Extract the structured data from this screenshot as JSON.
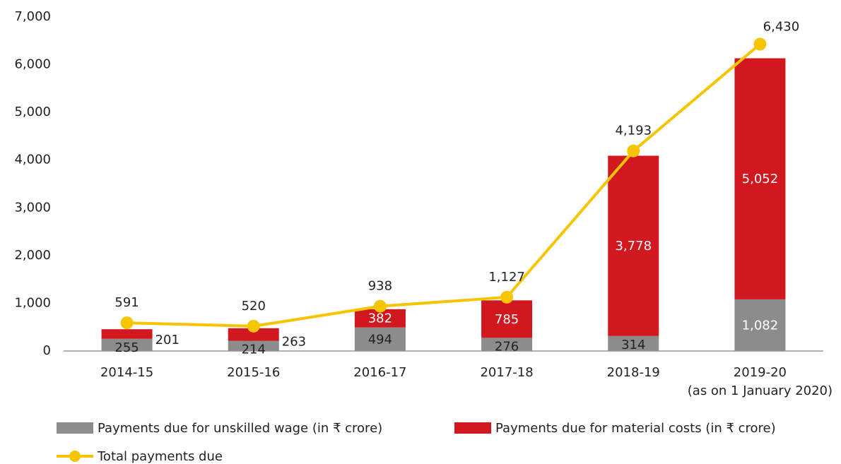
{
  "chart_data": {
    "type": "stacked-bar-line",
    "categories": [
      "2014-15",
      "2015-16",
      "2016-17",
      "2017-18",
      "2018-19",
      "2019-20\n(as on 1 January 2020)"
    ],
    "series": [
      {
        "name": "Payments due for unskilled wage (in ₹ crore)",
        "color": "#8c8c8c",
        "type": "bar",
        "values": [
          255,
          214,
          494,
          276,
          314,
          1082
        ],
        "value_labels": [
          "255",
          "214",
          "494",
          "276",
          "314",
          "1,082"
        ]
      },
      {
        "name": "Payments due for material costs (in ₹ crore)",
        "color": "#d0181e",
        "type": "bar",
        "values": [
          201,
          263,
          382,
          785,
          3778,
          5052
        ],
        "value_labels": [
          "201",
          "263",
          "382",
          "785",
          "3,778",
          "5,052"
        ]
      },
      {
        "name": "Total payments due",
        "color": "#f7c500",
        "type": "line",
        "values": [
          591,
          520,
          938,
          1127,
          4193,
          6430
        ],
        "value_labels": [
          "591",
          "520",
          "938",
          "1,127",
          "4,193",
          "6,430"
        ]
      }
    ],
    "ylim": [
      0,
      7000
    ],
    "yticks": [
      0,
      {
        "value": 1000,
        "label": "1,000"
      },
      {
        "value": 2000,
        "label": "2,000"
      },
      {
        "value": 3000,
        "label": "3,000"
      },
      {
        "value": 4000,
        "label": "4,000"
      },
      {
        "value": 5000,
        "label": "5,000"
      },
      {
        "value": 6000,
        "label": "6,000"
      },
      {
        "value": 7000,
        "label": "7,000"
      }
    ],
    "grid": false,
    "legend": "bottom"
  }
}
